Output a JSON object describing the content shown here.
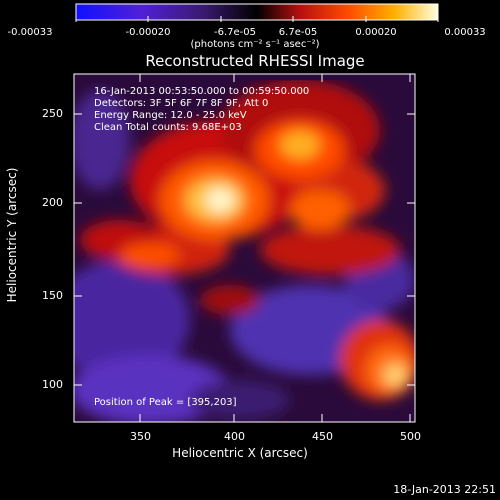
{
  "colorbar": {
    "ticks": [
      "-0.00033",
      "-0.00020",
      "-6.7e-05",
      "6.7e-05",
      "0.00020",
      "0.00033"
    ],
    "units": "(photons cm⁻² s⁻¹ asec⁻²)"
  },
  "plot": {
    "title": "Reconstructed RHESSI Image",
    "info_lines": [
      "16-Jan-2013 00:53:50.000 to 00:59:50.000",
      "Detectors: 3F 5F 6F 7F 8F 9F, Att 0",
      "Energy Range: 12.0 - 25.0 keV",
      "Clean     Total counts: 9.68E+03"
    ],
    "peak_label": "Position of Peak = [395,203]",
    "x_axis_title": "Heliocentric X (arcsec)",
    "y_axis_title": "Heliocentric Y (arcsec)",
    "x_ticks": [
      "350",
      "400",
      "450",
      "500"
    ],
    "y_ticks": [
      "100",
      "150",
      "200",
      "250"
    ]
  },
  "footer": {
    "timestamp": "18-Jan-2013 22:51"
  }
}
